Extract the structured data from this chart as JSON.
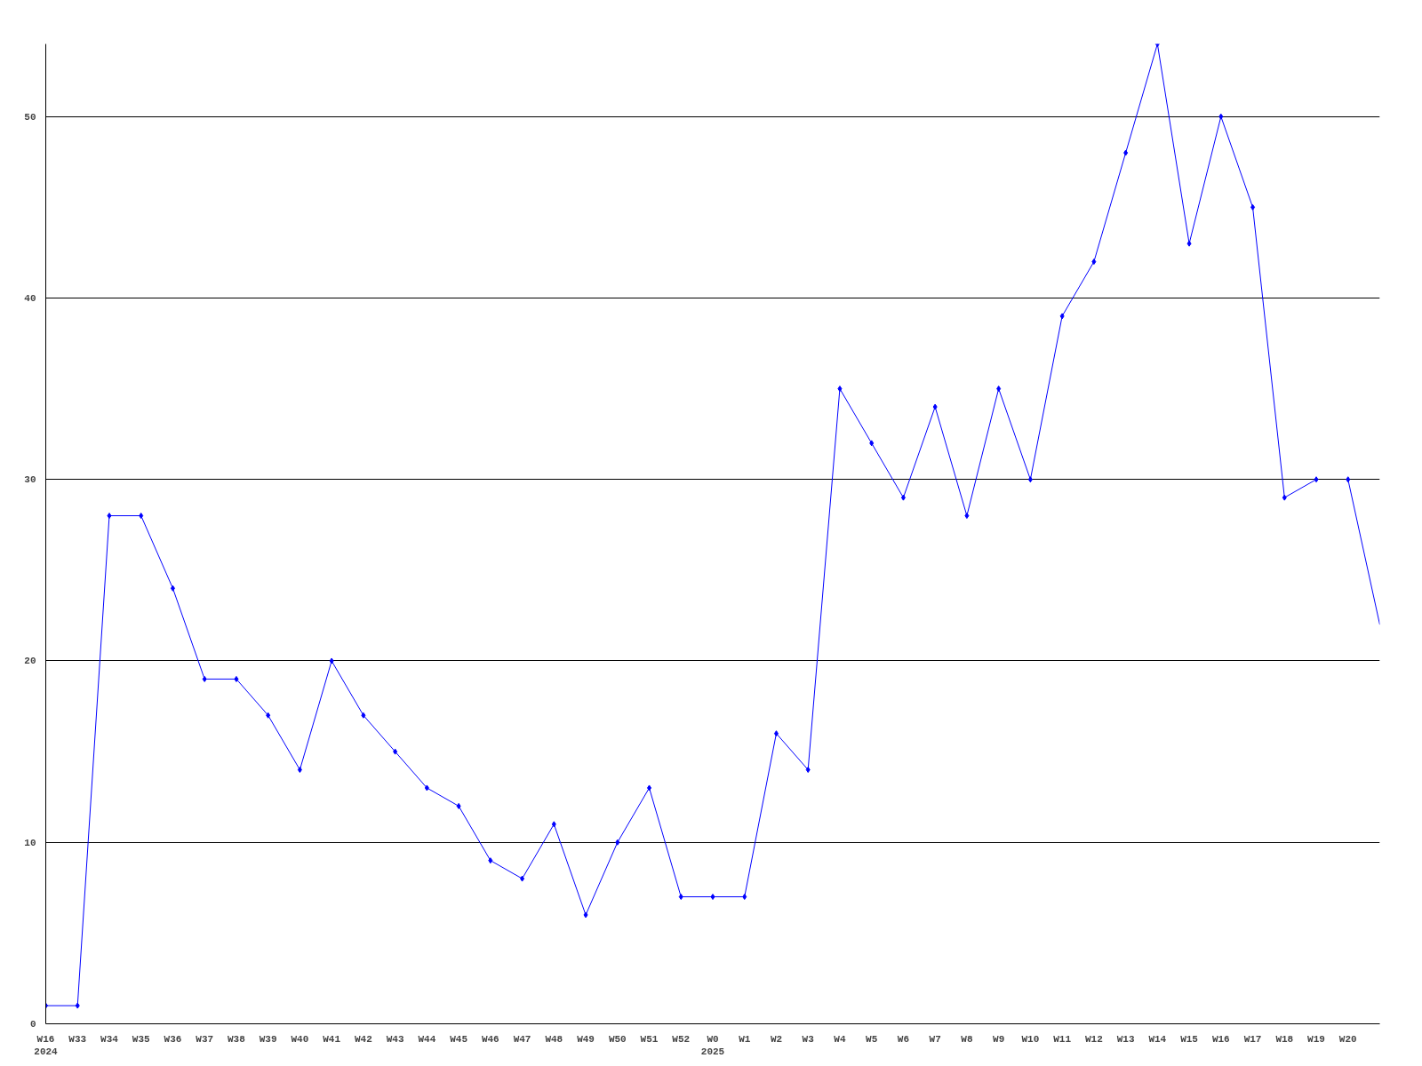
{
  "chart_data": {
    "type": "line",
    "categories": [
      "W16\n2024",
      "W33",
      "W34",
      "W35",
      "W36",
      "W37",
      "W38",
      "W39",
      "W40",
      "W41",
      "W42",
      "W43",
      "W44",
      "W45",
      "W46",
      "W47",
      "W48",
      "W49",
      "W50",
      "W51",
      "W52",
      "W0\n2025",
      "W1",
      "W2",
      "W3",
      "W4",
      "W5",
      "W6",
      "W7",
      "W8",
      "W9",
      "W10",
      "W11",
      "W12",
      "W13",
      "W14",
      "W15",
      "W16",
      "W17",
      "W18",
      "W19",
      "W20",
      null
    ],
    "series": [
      {
        "color": "#0000ff",
        "values": [
          1,
          1,
          28,
          28,
          24,
          19,
          19,
          17,
          14,
          20,
          17,
          15,
          13,
          12,
          9,
          8,
          11,
          6,
          10,
          13,
          7,
          7,
          7,
          16,
          14,
          35,
          32,
          29,
          34,
          28,
          35,
          30,
          39,
          42,
          48,
          54,
          43,
          50,
          45,
          29,
          30,
          null,
          null
        ]
      },
      {
        "color": "#0000ff",
        "values": [
          null,
          null,
          null,
          null,
          null,
          null,
          null,
          null,
          null,
          null,
          null,
          null,
          null,
          null,
          null,
          null,
          null,
          null,
          null,
          null,
          null,
          null,
          null,
          null,
          null,
          null,
          null,
          null,
          null,
          null,
          null,
          null,
          null,
          null,
          null,
          null,
          null,
          null,
          null,
          null,
          null,
          30,
          22
        ]
      }
    ],
    "ylim": [
      0,
      54
    ],
    "yticks": [
      0,
      10,
      20,
      30,
      40,
      50
    ],
    "grid": "y",
    "marker": "diamond",
    "line_style": "solid"
  }
}
